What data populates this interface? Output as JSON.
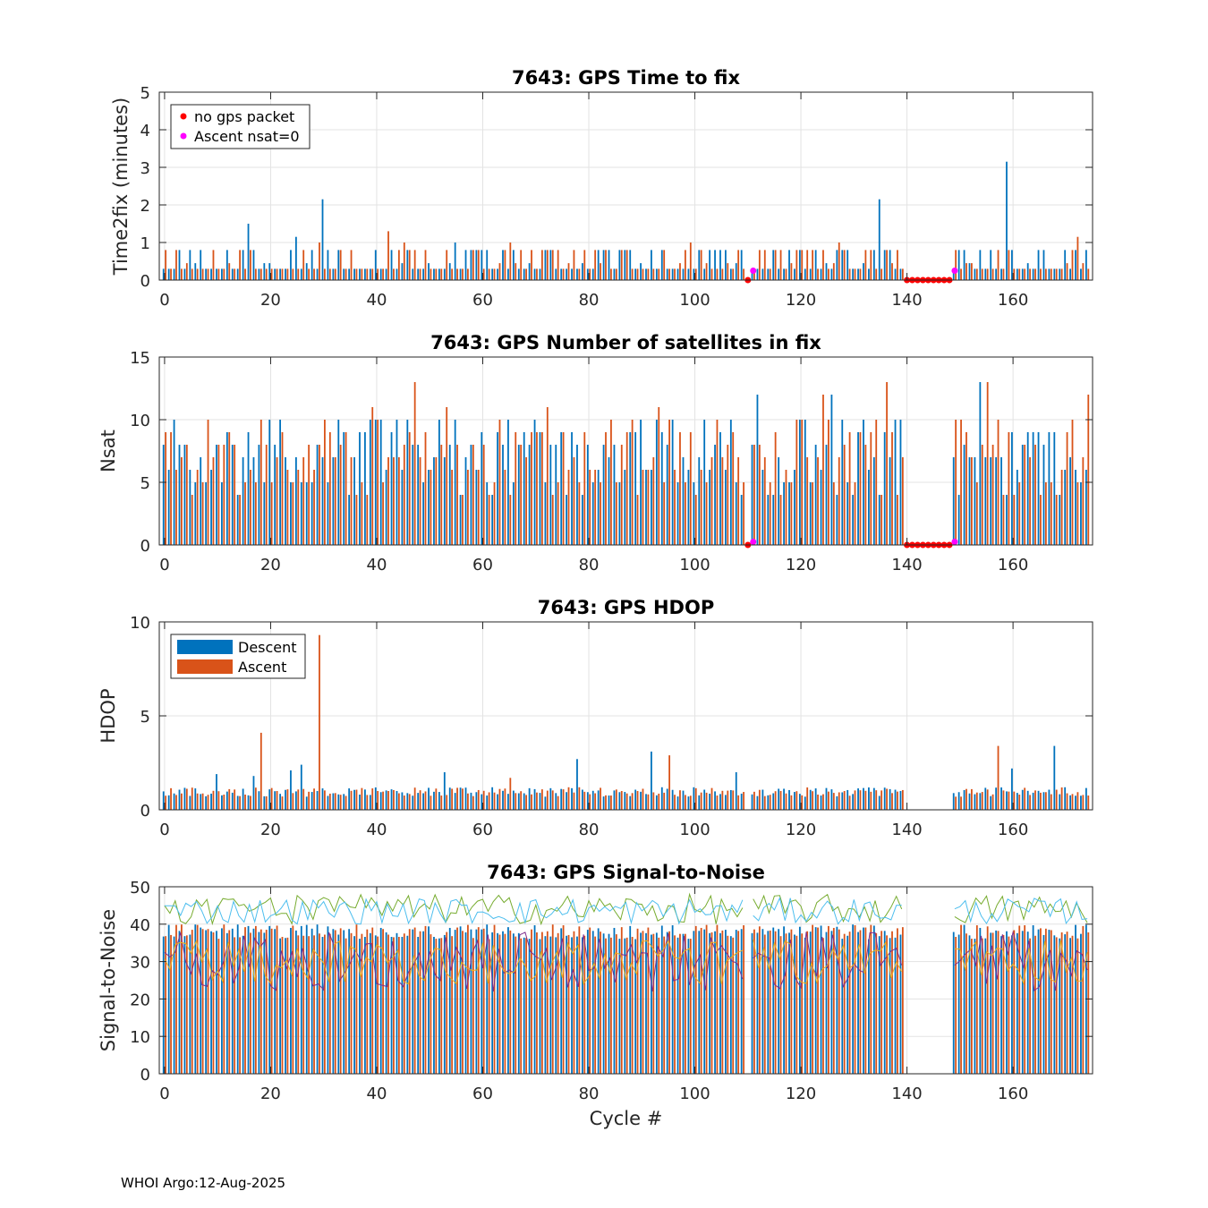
{
  "footer": "WHOI Argo:12-Aug-2025",
  "colors": {
    "descent": "#0072BD",
    "ascent": "#D95319",
    "nogps": "#FF0000",
    "nsat0": "#FF00FF",
    "snr": [
      "#7E2F8E",
      "#EDB120",
      "#77AC30",
      "#4DBEEE"
    ]
  },
  "chart_data": [
    {
      "type": "bar",
      "title": "7643: GPS Time to fix",
      "xlabel": "",
      "ylabel": "Time2fix (minutes)",
      "xlim": [
        -1,
        175
      ],
      "ylim": [
        0,
        5
      ],
      "xticks": [
        0,
        20,
        40,
        60,
        80,
        100,
        120,
        140,
        160
      ],
      "yticks": [
        0,
        1,
        2,
        3,
        4,
        5
      ],
      "grid": true,
      "legend": {
        "position": "top-left",
        "entries": [
          "no gps packet",
          "Ascent nsat=0"
        ]
      },
      "typical_value": 0.3,
      "series": [
        {
          "name": "Descent",
          "spikes": [
            [
              3,
              0.8
            ],
            [
              16,
              1.5
            ],
            [
              25,
              1.15
            ],
            [
              30,
              2.15
            ],
            [
              55,
              1.0
            ],
            [
              105,
              0.8
            ],
            [
              135,
              2.15
            ],
            [
              159,
              3.15
            ]
          ]
        },
        {
          "name": "Ascent",
          "spikes": [
            [
              9,
              0.8
            ],
            [
              16,
              0.8
            ],
            [
              29,
              1.0
            ],
            [
              42,
              1.3
            ],
            [
              45,
              1.0
            ],
            [
              65,
              1.0
            ],
            [
              99,
              1.0
            ],
            [
              127,
              1.0
            ],
            [
              172,
              1.15
            ]
          ]
        }
      ],
      "no_gps_packet": [
        110,
        140,
        141,
        142,
        143,
        144,
        145,
        146,
        147,
        148
      ],
      "ascent_nsat0": [
        111,
        149
      ]
    },
    {
      "type": "bar",
      "title": "7643: GPS Number of satellites in fix",
      "xlabel": "",
      "ylabel": "Nsat",
      "xlim": [
        -1,
        175
      ],
      "ylim": [
        0,
        15
      ],
      "xticks": [
        0,
        20,
        40,
        60,
        80,
        100,
        120,
        140,
        160
      ],
      "yticks": [
        0,
        5,
        10,
        15
      ],
      "grid": true,
      "typical_range": [
        4,
        13
      ],
      "series": [
        {
          "name": "Descent",
          "spikes": [
            [
              2,
              10
            ],
            [
              20,
              10
            ],
            [
              52,
              10
            ],
            [
              55,
              10
            ],
            [
              90,
              10
            ],
            [
              112,
              12
            ],
            [
              126,
              12
            ],
            [
              138,
              10
            ],
            [
              154,
              13
            ]
          ]
        },
        {
          "name": "Ascent",
          "spikes": [
            [
              39,
              11
            ],
            [
              47,
              13
            ],
            [
              53,
              11
            ],
            [
              72,
              11
            ],
            [
              93,
              11
            ],
            [
              124,
              12
            ],
            [
              136,
              13
            ],
            [
              155,
              13
            ],
            [
              174,
              12
            ]
          ]
        }
      ],
      "no_gps_packet": [
        110,
        140,
        141,
        142,
        143,
        144,
        145,
        146,
        147,
        148
      ],
      "ascent_nsat0": [
        111,
        149
      ]
    },
    {
      "type": "bar",
      "title": "7643: GPS HDOP",
      "xlabel": "",
      "ylabel": "HDOP",
      "xlim": [
        -1,
        175
      ],
      "ylim": [
        0,
        10
      ],
      "xticks": [
        0,
        20,
        40,
        60,
        80,
        100,
        120,
        140,
        160
      ],
      "yticks": [
        0,
        5,
        10
      ],
      "grid": true,
      "legend": {
        "position": "top-left",
        "entries": [
          "Descent",
          "Ascent"
        ]
      },
      "typical_range": [
        0.7,
        1.3
      ],
      "series": [
        {
          "name": "Descent",
          "spikes": [
            [
              10,
              1.9
            ],
            [
              17,
              1.8
            ],
            [
              24,
              2.1
            ],
            [
              26,
              2.4
            ],
            [
              53,
              2.0
            ],
            [
              78,
              2.7
            ],
            [
              92,
              3.1
            ],
            [
              108,
              2.0
            ],
            [
              160,
              2.2
            ],
            [
              168,
              3.4
            ]
          ]
        },
        {
          "name": "Ascent",
          "spikes": [
            [
              18,
              4.1
            ],
            [
              29,
              9.3
            ],
            [
              65,
              1.7
            ],
            [
              95,
              2.9
            ],
            [
              157,
              3.4
            ]
          ]
        }
      ],
      "gaps": [
        [
          110,
          110
        ],
        [
          140,
          148
        ]
      ]
    },
    {
      "type": "bar",
      "title": "7643: GPS Signal-to-Noise",
      "xlabel": "Cycle #",
      "ylabel": "Signal-to-Noise",
      "xlim": [
        -1,
        175
      ],
      "ylim": [
        0,
        50
      ],
      "xticks": [
        0,
        20,
        40,
        60,
        80,
        100,
        120,
        140,
        160
      ],
      "yticks": [
        0,
        10,
        20,
        30,
        40,
        50
      ],
      "grid": true,
      "bar_range": [
        36,
        40
      ],
      "lines": [
        {
          "name": "snr-purple",
          "range": [
            22,
            38
          ]
        },
        {
          "name": "snr-yellow",
          "range": [
            24,
            36
          ]
        },
        {
          "name": "snr-green",
          "range": [
            40,
            48
          ]
        },
        {
          "name": "snr-cyan",
          "range": [
            40,
            47
          ]
        }
      ],
      "gaps": [
        [
          110,
          110
        ],
        [
          140,
          148
        ]
      ]
    }
  ]
}
